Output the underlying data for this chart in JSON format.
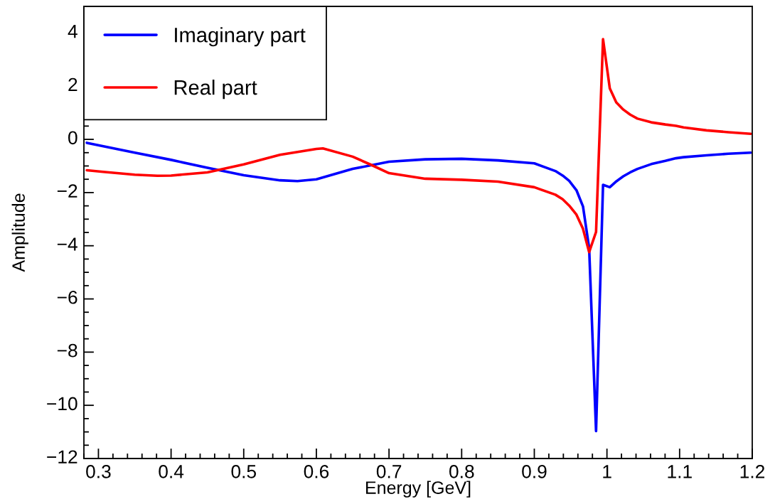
{
  "chart_data": {
    "type": "line",
    "xlabel": "Energy [GeV]",
    "ylabel": "Amplitude",
    "xlim": [
      0.28,
      1.2
    ],
    "ylim": [
      -12,
      5
    ],
    "xticks": [
      {
        "value": 0.28,
        "label": null
      },
      0.3,
      {
        "value": 0.32,
        "label": null
      },
      {
        "value": 0.34,
        "label": null
      },
      {
        "value": 0.36,
        "label": null
      },
      {
        "value": 0.38,
        "label": null
      },
      0.4,
      {
        "value": 0.42,
        "label": null
      },
      {
        "value": 0.44,
        "label": null
      },
      {
        "value": 0.46,
        "label": null
      },
      {
        "value": 0.48,
        "label": null
      },
      0.5,
      {
        "value": 0.52,
        "label": null
      },
      {
        "value": 0.54,
        "label": null
      },
      {
        "value": 0.56,
        "label": null
      },
      {
        "value": 0.58,
        "label": null
      },
      0.6,
      {
        "value": 0.62,
        "label": null
      },
      {
        "value": 0.64,
        "label": null
      },
      {
        "value": 0.66,
        "label": null
      },
      {
        "value": 0.68,
        "label": null
      },
      0.7,
      {
        "value": 0.72,
        "label": null
      },
      {
        "value": 0.74,
        "label": null
      },
      {
        "value": 0.76,
        "label": null
      },
      {
        "value": 0.78,
        "label": null
      },
      0.8,
      {
        "value": 0.82,
        "label": null
      },
      {
        "value": 0.84,
        "label": null
      },
      {
        "value": 0.86,
        "label": null
      },
      {
        "value": 0.88,
        "label": null
      },
      0.9,
      {
        "value": 0.92,
        "label": null
      },
      {
        "value": 0.94,
        "label": null
      },
      {
        "value": 0.96,
        "label": null
      },
      {
        "value": 0.98,
        "label": null
      },
      1,
      {
        "value": 1.02,
        "label": null
      },
      {
        "value": 1.04,
        "label": null
      },
      {
        "value": 1.06,
        "label": null
      },
      {
        "value": 1.08,
        "label": null
      },
      1.1,
      {
        "value": 1.12,
        "label": null
      },
      {
        "value": 1.14,
        "label": null
      },
      {
        "value": 1.16,
        "label": null
      },
      {
        "value": 1.18,
        "label": null
      },
      1.2
    ],
    "yticks": [
      {
        "value": -12,
        "label": "−12"
      },
      {
        "value": -11.5,
        "label": null
      },
      {
        "value": -11,
        "label": null
      },
      {
        "value": -10.5,
        "label": null
      },
      {
        "value": -10,
        "label": "−10"
      },
      {
        "value": -9.5,
        "label": null
      },
      {
        "value": -9,
        "label": null
      },
      {
        "value": -8.5,
        "label": null
      },
      {
        "value": -8,
        "label": "−8"
      },
      {
        "value": -7.5,
        "label": null
      },
      {
        "value": -7,
        "label": null
      },
      {
        "value": -6.5,
        "label": null
      },
      {
        "value": -6,
        "label": "−6"
      },
      {
        "value": -5.5,
        "label": null
      },
      {
        "value": -5,
        "label": null
      },
      {
        "value": -4.5,
        "label": null
      },
      {
        "value": -4,
        "label": "−4"
      },
      {
        "value": -3.5,
        "label": null
      },
      {
        "value": -3,
        "label": null
      },
      {
        "value": -2.5,
        "label": null
      },
      {
        "value": -2,
        "label": "−2"
      },
      {
        "value": -1.5,
        "label": null
      },
      {
        "value": -1,
        "label": null
      },
      {
        "value": -0.5,
        "label": null
      },
      0,
      {
        "value": 0.5,
        "label": null
      },
      {
        "value": 1,
        "label": null
      },
      {
        "value": 1.5,
        "label": null
      },
      2,
      {
        "value": 2.5,
        "label": null
      },
      {
        "value": 3,
        "label": null
      },
      {
        "value": 3.5,
        "label": null
      },
      4,
      {
        "value": 4.5,
        "label": null
      },
      {
        "value": 5,
        "label": null
      }
    ],
    "legend": "top left",
    "grid": false,
    "marker": "none",
    "line_style": "solid",
    "series": [
      {
        "name": "Imaginary part",
        "color": "#0000ff",
        "x": [
          0.284,
          0.35,
          0.4,
          0.45,
          0.5,
          0.55,
          0.574,
          0.6,
          0.65,
          0.7,
          0.75,
          0.8,
          0.85,
          0.9,
          0.929,
          0.939,
          0.948,
          0.958,
          0.967,
          0.9755,
          0.985,
          0.9946,
          1.0039,
          1.0128,
          1.0225,
          1.032,
          1.042,
          1.061,
          1.0804,
          1.095,
          1.1055,
          1.137,
          1.167,
          1.198
        ],
        "values": [
          -0.13,
          -0.5,
          -0.77,
          -1.07,
          -1.35,
          -1.54,
          -1.57,
          -1.5,
          -1.11,
          -0.84,
          -0.75,
          -0.73,
          -0.79,
          -0.9,
          -1.19,
          -1.36,
          -1.56,
          -1.91,
          -2.52,
          -4.09,
          -10.97,
          -1.71,
          -1.8,
          -1.58,
          -1.39,
          -1.24,
          -1.11,
          -0.93,
          -0.81,
          -0.71,
          -0.67,
          -0.6,
          -0.54,
          -0.5
        ]
      },
      {
        "name": "Real part",
        "color": "#ff0000",
        "x": [
          0.284,
          0.3065,
          0.35,
          0.381,
          0.4,
          0.45,
          0.5,
          0.55,
          0.6,
          0.609,
          0.65,
          0.674,
          0.7,
          0.75,
          0.8,
          0.85,
          0.9,
          0.929,
          0.939,
          0.948,
          0.958,
          0.967,
          0.9755,
          0.985,
          0.9946,
          1.0039,
          1.0128,
          1.0225,
          1.032,
          1.042,
          1.061,
          1.0804,
          1.095,
          1.1055,
          1.137,
          1.167,
          1.198
        ],
        "values": [
          -1.16,
          -1.22,
          -1.33,
          -1.37,
          -1.36,
          -1.24,
          -0.94,
          -0.58,
          -0.36,
          -0.34,
          -0.65,
          -0.94,
          -1.27,
          -1.48,
          -1.52,
          -1.59,
          -1.8,
          -2.08,
          -2.25,
          -2.49,
          -2.83,
          -3.36,
          -4.24,
          -3.48,
          3.77,
          1.92,
          1.39,
          1.12,
          0.93,
          0.78,
          0.64,
          0.56,
          0.51,
          0.45,
          0.34,
          0.27,
          0.21
        ]
      }
    ]
  }
}
